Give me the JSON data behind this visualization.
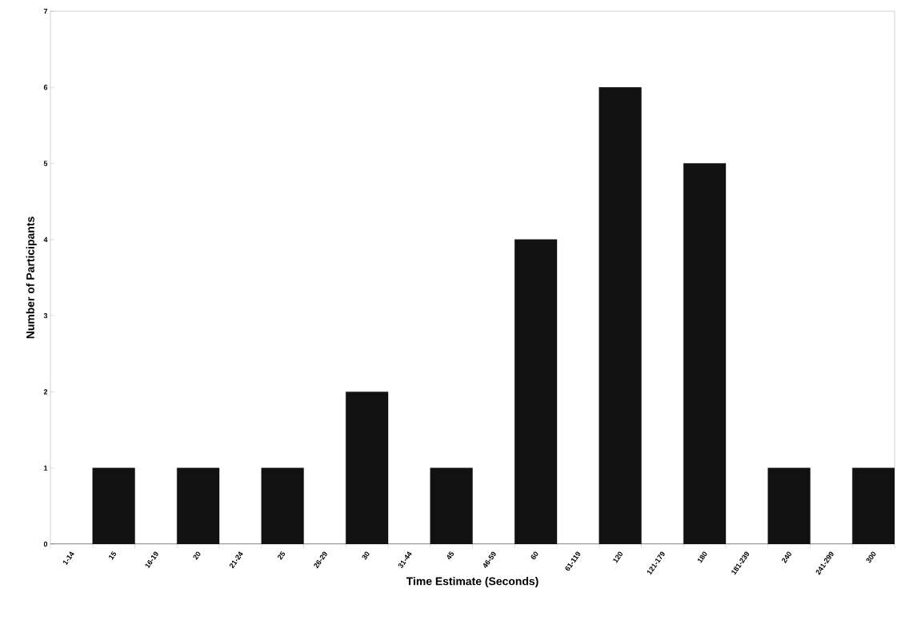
{
  "chart_data": {
    "type": "bar",
    "xlabel": "Time Estimate (Seconds)",
    "ylabel": "Number of Participants",
    "categories": [
      "1-14",
      "15",
      "16-19",
      "20",
      "21-24",
      "25",
      "26-29",
      "30",
      "31-44",
      "45",
      "46-59",
      "60",
      "61-119",
      "120",
      "121-179",
      "180",
      "181-239",
      "240",
      "241-299",
      "300"
    ],
    "values": [
      0,
      1,
      0,
      1,
      0,
      1,
      0,
      2,
      0,
      1,
      0,
      4,
      0,
      6,
      0,
      5,
      0,
      1,
      0,
      1
    ],
    "color": "#111111",
    "ylim": [
      0,
      7
    ],
    "yticks": [
      0,
      1,
      2,
      3,
      4,
      5,
      6,
      7
    ],
    "grid": false
  }
}
